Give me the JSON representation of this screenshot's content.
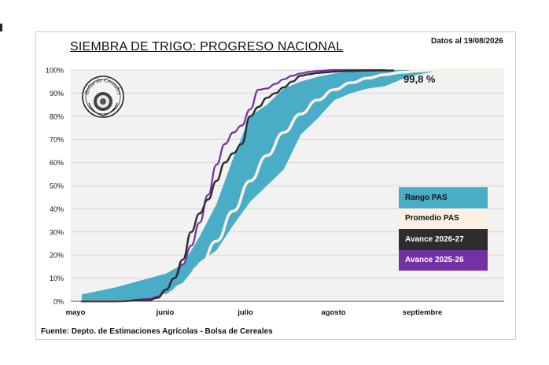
{
  "header": {
    "title": "SIEMBRA DE TRIGO: PROGRESO NACIONAL",
    "date_note": "Datos al 19/08/2026"
  },
  "footer": {
    "source": "Fuente: Depto. de Estimaciones Agrícolas - Bolsa de Cereales"
  },
  "logo": {
    "text": "Bolsa de Cereales",
    "icon": "bolsa-de-cereales-seal"
  },
  "chart_data": {
    "type": "area",
    "title": "SIEMBRA DE TRIGO: PROGRESO NACIONAL",
    "xlabel": "",
    "ylabel": "",
    "x_ticks": [
      "mayo",
      "junio",
      "julio",
      "agosto",
      "septiembre"
    ],
    "y_ticks": [
      "0%",
      "10%",
      "20%",
      "30%",
      "40%",
      "50%",
      "60%",
      "70%",
      "80%",
      "90%",
      "100%"
    ],
    "ylim": [
      0,
      100
    ],
    "grid": true,
    "legend_position": "right",
    "annotation": "99,8 %",
    "colors": {
      "range": "#4aadc8",
      "average": "#fdefe2",
      "current": "#2d2d2d",
      "previous": "#7431a3",
      "plot_bg": "#f2f2f2",
      "grid": "#d6d6d6"
    },
    "series": [
      {
        "name": "Rango PAS",
        "kind": "band",
        "x": [
          0,
          4,
          8,
          10,
          12,
          14,
          16,
          18,
          20,
          22,
          24,
          26,
          28,
          30,
          32,
          34,
          36,
          38,
          40,
          42,
          44,
          46,
          48,
          50
        ],
        "upper": [
          3,
          6,
          10,
          12,
          16,
          28,
          42,
          62,
          80,
          85,
          92,
          95,
          97,
          98.5,
          99.5,
          100,
          100,
          100,
          100,
          100,
          100,
          100,
          100,
          100
        ],
        "lower": [
          0,
          0,
          1,
          3,
          8,
          17,
          22,
          33,
          43,
          50,
          57,
          72,
          79,
          87,
          90,
          92,
          93,
          96,
          98,
          99.5,
          100,
          100,
          100,
          100
        ]
      },
      {
        "name": "Promedio PAS",
        "kind": "line",
        "x": [
          0,
          4,
          8,
          10,
          12,
          14,
          16,
          18,
          20,
          22,
          24,
          26,
          28,
          30,
          32,
          34,
          36,
          38,
          40,
          42,
          44,
          46,
          48,
          50
        ],
        "values": [
          0,
          0,
          0.5,
          2.5,
          7,
          15,
          26,
          39,
          52,
          63,
          73,
          81,
          87,
          91.5,
          94.5,
          96.5,
          98,
          99,
          99.6,
          100,
          100,
          100,
          100,
          100
        ]
      },
      {
        "name": "Avance 2026-27",
        "kind": "line",
        "x": [
          0,
          4,
          8,
          9,
          10,
          11,
          12,
          13,
          14,
          15,
          16,
          17,
          18,
          19,
          20,
          21,
          22,
          23,
          24,
          25,
          26,
          27,
          28,
          29,
          30,
          31,
          32,
          33,
          34,
          35,
          36,
          37
        ],
        "values": [
          0,
          0,
          0.5,
          1.5,
          5,
          10,
          18,
          30,
          38,
          44,
          52,
          60,
          64,
          68,
          80,
          84,
          88,
          90,
          92.5,
          95,
          97.5,
          98.2,
          98.7,
          99,
          99.3,
          99.5,
          99.6,
          99.7,
          99.75,
          99.78,
          99.79,
          99.8
        ]
      },
      {
        "name": "Avance 2025-26",
        "kind": "line",
        "x": [
          0,
          4,
          8,
          9,
          10,
          11,
          12,
          13,
          14,
          15,
          16,
          17,
          18,
          19,
          20,
          21,
          22,
          23,
          24,
          25,
          26,
          27,
          28,
          30,
          32,
          34,
          36
        ],
        "values": [
          0,
          0,
          1,
          2,
          5,
          10,
          16,
          24,
          34,
          46,
          59,
          68,
          73,
          76,
          83,
          91.5,
          92,
          94,
          96,
          97.5,
          98.5,
          99.2,
          99.6,
          100,
          100,
          100,
          100
        ]
      }
    ]
  }
}
